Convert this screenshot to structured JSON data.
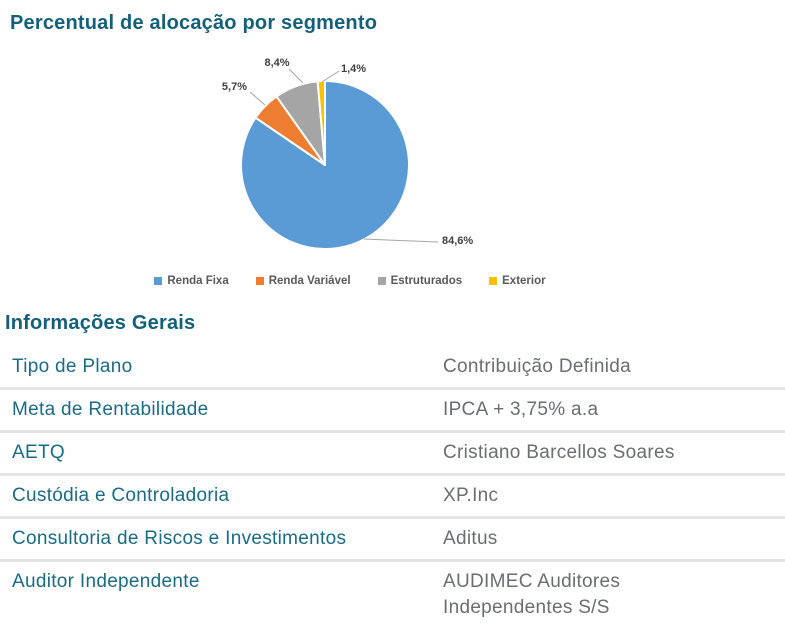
{
  "chart_section": {
    "title": "Percentual de alocação por segmento"
  },
  "chart_data": {
    "type": "pie",
    "title": "Percentual de alocação por segmento",
    "direction": "clockwise",
    "start_angle_deg": 0,
    "legend_position": "bottom",
    "series": [
      {
        "name": "Renda Fixa",
        "value": 84.6,
        "label": "84,6%",
        "color": "#5B9BD5"
      },
      {
        "name": "Renda Variável",
        "value": 5.7,
        "label": "5,7%",
        "color": "#ED7D31"
      },
      {
        "name": "Estruturados",
        "value": 8.4,
        "label": "8,4%",
        "color": "#A5A5A5"
      },
      {
        "name": "Exterior",
        "value": 1.4,
        "label": "1,4%",
        "color": "#FFC000"
      }
    ]
  },
  "info_section": {
    "title": "Informações Gerais"
  },
  "info_table": {
    "rows": [
      {
        "label": "Tipo de Plano",
        "value": "Contribuição Definida"
      },
      {
        "label": "Meta de Rentabilidade",
        "value": "IPCA + 3,75% a.a"
      },
      {
        "label": "AETQ",
        "value": "Cristiano Barcellos Soares"
      },
      {
        "label": "Custódia e Controladoria",
        "value": "XP.Inc"
      },
      {
        "label": "Consultoria de Riscos e Investimentos",
        "value": "Aditus"
      },
      {
        "label": "Auditor Independente",
        "value": "AUDIMEC Auditores Independentes S/S"
      }
    ]
  },
  "colors": {
    "heading_teal": "#14607a",
    "table_label_teal": "#1a6b84",
    "table_value_gray": "#6b6d70",
    "divider_gray": "#e4e4e4",
    "legend_text_gray": "#595959",
    "data_label_gray": "#3f3f3f",
    "leader_line_gray": "#a6a6a6"
  }
}
